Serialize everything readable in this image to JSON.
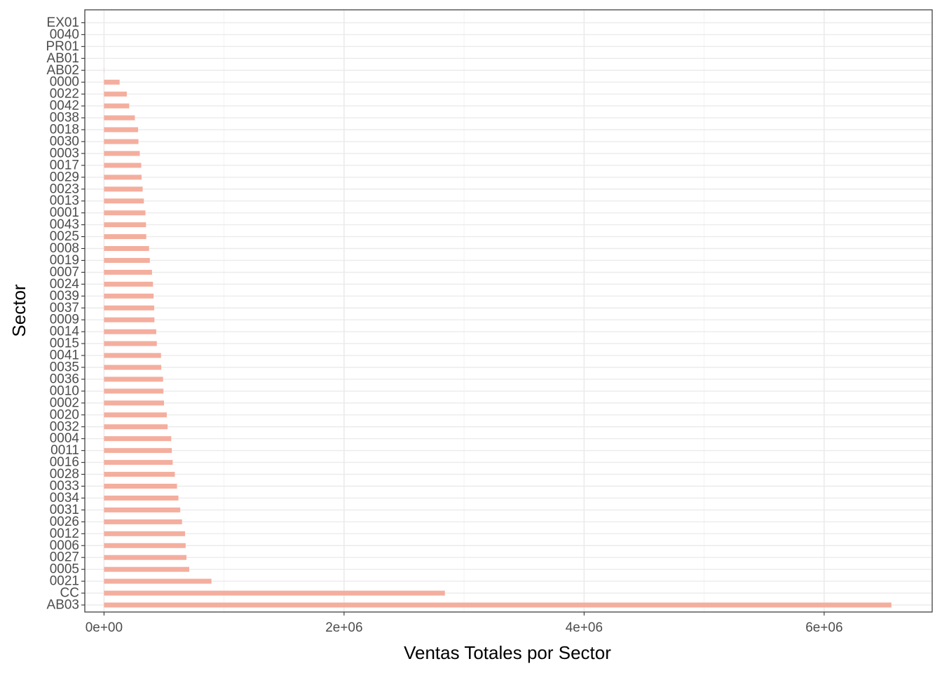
{
  "chart_data": {
    "type": "bar",
    "orientation": "horizontal",
    "xlabel": "Ventas Totales por Sector",
    "ylabel": "Sector",
    "xlim": [
      -160000,
      6900000
    ],
    "xticks": [
      0,
      2000000,
      4000000,
      6000000
    ],
    "xtick_labels": [
      "0e+00",
      "2e+06",
      "4e+06",
      "6e+06"
    ],
    "grid": true,
    "bar_color": "#f4ae9e",
    "categories": [
      "AB03",
      "CC",
      "0021",
      "0005",
      "0027",
      "0006",
      "0012",
      "0026",
      "0031",
      "0034",
      "0033",
      "0028",
      "0016",
      "0011",
      "0004",
      "0032",
      "0020",
      "0002",
      "0010",
      "0036",
      "0035",
      "0041",
      "0015",
      "0014",
      "0009",
      "0037",
      "0039",
      "0024",
      "0007",
      "0019",
      "0008",
      "0025",
      "0043",
      "0001",
      "0013",
      "0023",
      "0029",
      "0017",
      "0003",
      "0030",
      "0018",
      "0038",
      "0042",
      "0022",
      "0000",
      "AB02",
      "AB01",
      "PR01",
      "0040",
      "EX01"
    ],
    "values": [
      6560000,
      2840000,
      895000,
      710000,
      687000,
      680000,
      675000,
      650000,
      635000,
      620000,
      608000,
      590000,
      572000,
      565000,
      560000,
      530000,
      523000,
      500000,
      495000,
      492000,
      477000,
      475000,
      440000,
      435000,
      420000,
      418000,
      413000,
      408000,
      400000,
      382000,
      375000,
      352000,
      350000,
      345000,
      332000,
      322000,
      313000,
      310000,
      298000,
      287000,
      284000,
      257000,
      210000,
      190000,
      130000,
      2000,
      0,
      0,
      0,
      0
    ]
  }
}
